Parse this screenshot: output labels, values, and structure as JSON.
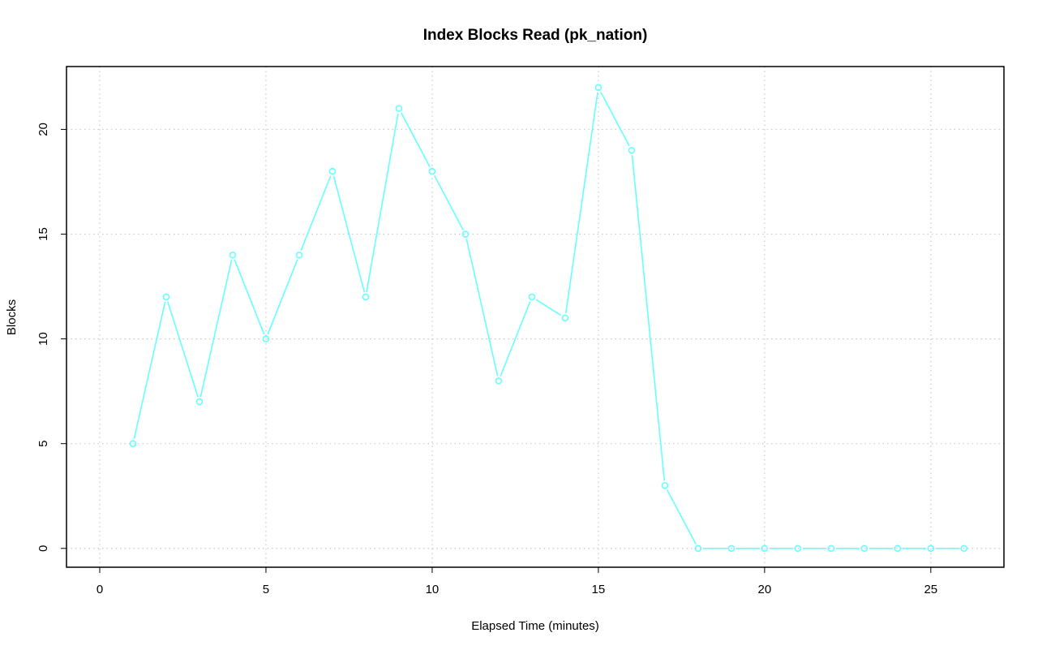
{
  "chart_data": {
    "type": "line",
    "title": "Index Blocks Read (pk_nation)",
    "xlabel": "Elapsed Time (minutes)",
    "ylabel": "Blocks",
    "xlim": [
      -1,
      27.2
    ],
    "ylim": [
      -0.9,
      23
    ],
    "x_ticks": [
      0,
      5,
      10,
      15,
      20,
      25
    ],
    "y_ticks": [
      0,
      5,
      10,
      15,
      20
    ],
    "grid": true,
    "line_color": "#66ffff",
    "series": [
      {
        "x": [
          1,
          2,
          3,
          4,
          5,
          6,
          7,
          8,
          9,
          10,
          11,
          12,
          13,
          14,
          15,
          16,
          17,
          18,
          19,
          20,
          21,
          22,
          23,
          24,
          25,
          26
        ],
        "values": [
          5,
          12,
          7,
          14,
          10,
          14,
          18,
          12,
          21,
          18,
          15,
          8,
          12,
          11,
          22,
          19,
          3,
          0,
          0,
          0,
          0,
          0,
          0,
          0,
          0,
          0
        ]
      }
    ]
  }
}
